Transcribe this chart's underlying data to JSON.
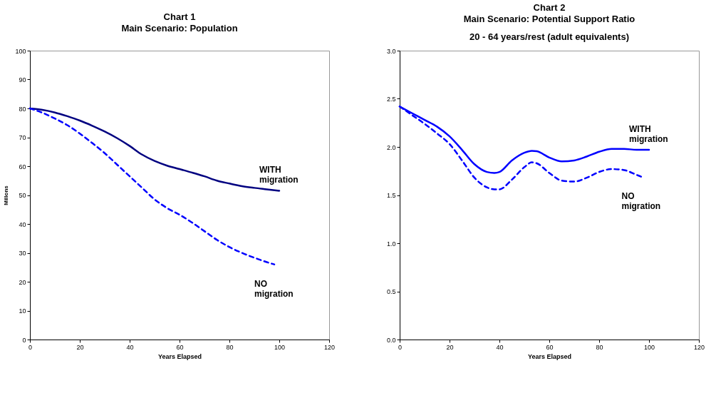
{
  "chart_data": [
    {
      "type": "line",
      "title": "Chart 1\nMain Scenario: Population",
      "xlabel": "Years Elapsed",
      "ylabel": "Millons",
      "xlim": [
        0,
        120
      ],
      "xticks": [
        0,
        20,
        40,
        60,
        80,
        100,
        120
      ],
      "ylim": [
        0,
        100
      ],
      "yticks": [
        0,
        10,
        20,
        30,
        40,
        50,
        60,
        70,
        80,
        90,
        100
      ],
      "grid": false,
      "marker": "none",
      "series": [
        {
          "name": "WITH migration",
          "color": "#000080",
          "line_style": "solid",
          "x": [
            0,
            5,
            10,
            15,
            20,
            25,
            30,
            35,
            40,
            45,
            50,
            55,
            60,
            65,
            70,
            75,
            80,
            85,
            90,
            95,
            100
          ],
          "values": [
            80,
            79.5,
            78.6,
            77.3,
            75.8,
            74,
            72,
            69.7,
            67,
            64,
            61.8,
            60.2,
            59,
            57.8,
            56.5,
            55,
            54,
            53.1,
            52.5,
            52,
            51.5
          ]
        },
        {
          "name": "NO migration",
          "color": "#0000ff",
          "line_style": "dashed",
          "x": [
            0,
            5,
            10,
            15,
            20,
            25,
            30,
            35,
            40,
            45,
            50,
            55,
            60,
            65,
            70,
            75,
            80,
            85,
            90,
            95,
            98
          ],
          "values": [
            80,
            78.5,
            76.5,
            74.2,
            71.3,
            68,
            64.5,
            60.5,
            56.5,
            52.5,
            48.5,
            45.5,
            43.2,
            40.5,
            37.5,
            34.5,
            32,
            30,
            28.3,
            26.8,
            26
          ]
        }
      ]
    },
    {
      "type": "line",
      "title": "Chart 2\nMain Scenario: Potential Support Ratio",
      "subtitle": "20 - 64 years/rest (adult equivalents)",
      "xlabel": "Years Elapsed",
      "xlim": [
        0,
        120
      ],
      "xticks": [
        0,
        20,
        40,
        60,
        80,
        100,
        120
      ],
      "ylim": [
        0,
        3
      ],
      "yticks": [
        {
          "value": 0,
          "label": "0.0"
        },
        0.5,
        {
          "value": 1,
          "label": "1.0"
        },
        1.5,
        {
          "value": 2,
          "label": "2.0"
        },
        2.5,
        {
          "value": 3,
          "label": "3.0"
        }
      ],
      "grid": false,
      "marker": "none",
      "series": [
        {
          "name": "WITH migration",
          "color": "#0000ff",
          "line_style": "solid",
          "x": [
            0,
            5,
            10,
            15,
            20,
            25,
            30,
            35,
            38,
            40,
            45,
            50,
            53,
            55,
            60,
            65,
            70,
            75,
            80,
            85,
            90,
            95,
            100
          ],
          "values": [
            2.42,
            2.35,
            2.28,
            2.21,
            2.11,
            1.97,
            1.82,
            1.74,
            1.73,
            1.74,
            1.86,
            1.94,
            1.96,
            1.955,
            1.89,
            1.85,
            1.86,
            1.9,
            1.95,
            1.98,
            1.98,
            1.97,
            1.97
          ]
        },
        {
          "name": "NO migration",
          "color": "#0000ff",
          "line_style": "dashed",
          "x": [
            0,
            5,
            10,
            15,
            20,
            25,
            30,
            35,
            38,
            40,
            45,
            50,
            53,
            55,
            60,
            65,
            70,
            75,
            80,
            85,
            90,
            95,
            97
          ],
          "values": [
            2.42,
            2.33,
            2.24,
            2.14,
            2.03,
            1.86,
            1.68,
            1.58,
            1.56,
            1.56,
            1.66,
            1.79,
            1.84,
            1.83,
            1.73,
            1.65,
            1.64,
            1.68,
            1.74,
            1.77,
            1.76,
            1.71,
            1.69
          ]
        }
      ]
    }
  ]
}
